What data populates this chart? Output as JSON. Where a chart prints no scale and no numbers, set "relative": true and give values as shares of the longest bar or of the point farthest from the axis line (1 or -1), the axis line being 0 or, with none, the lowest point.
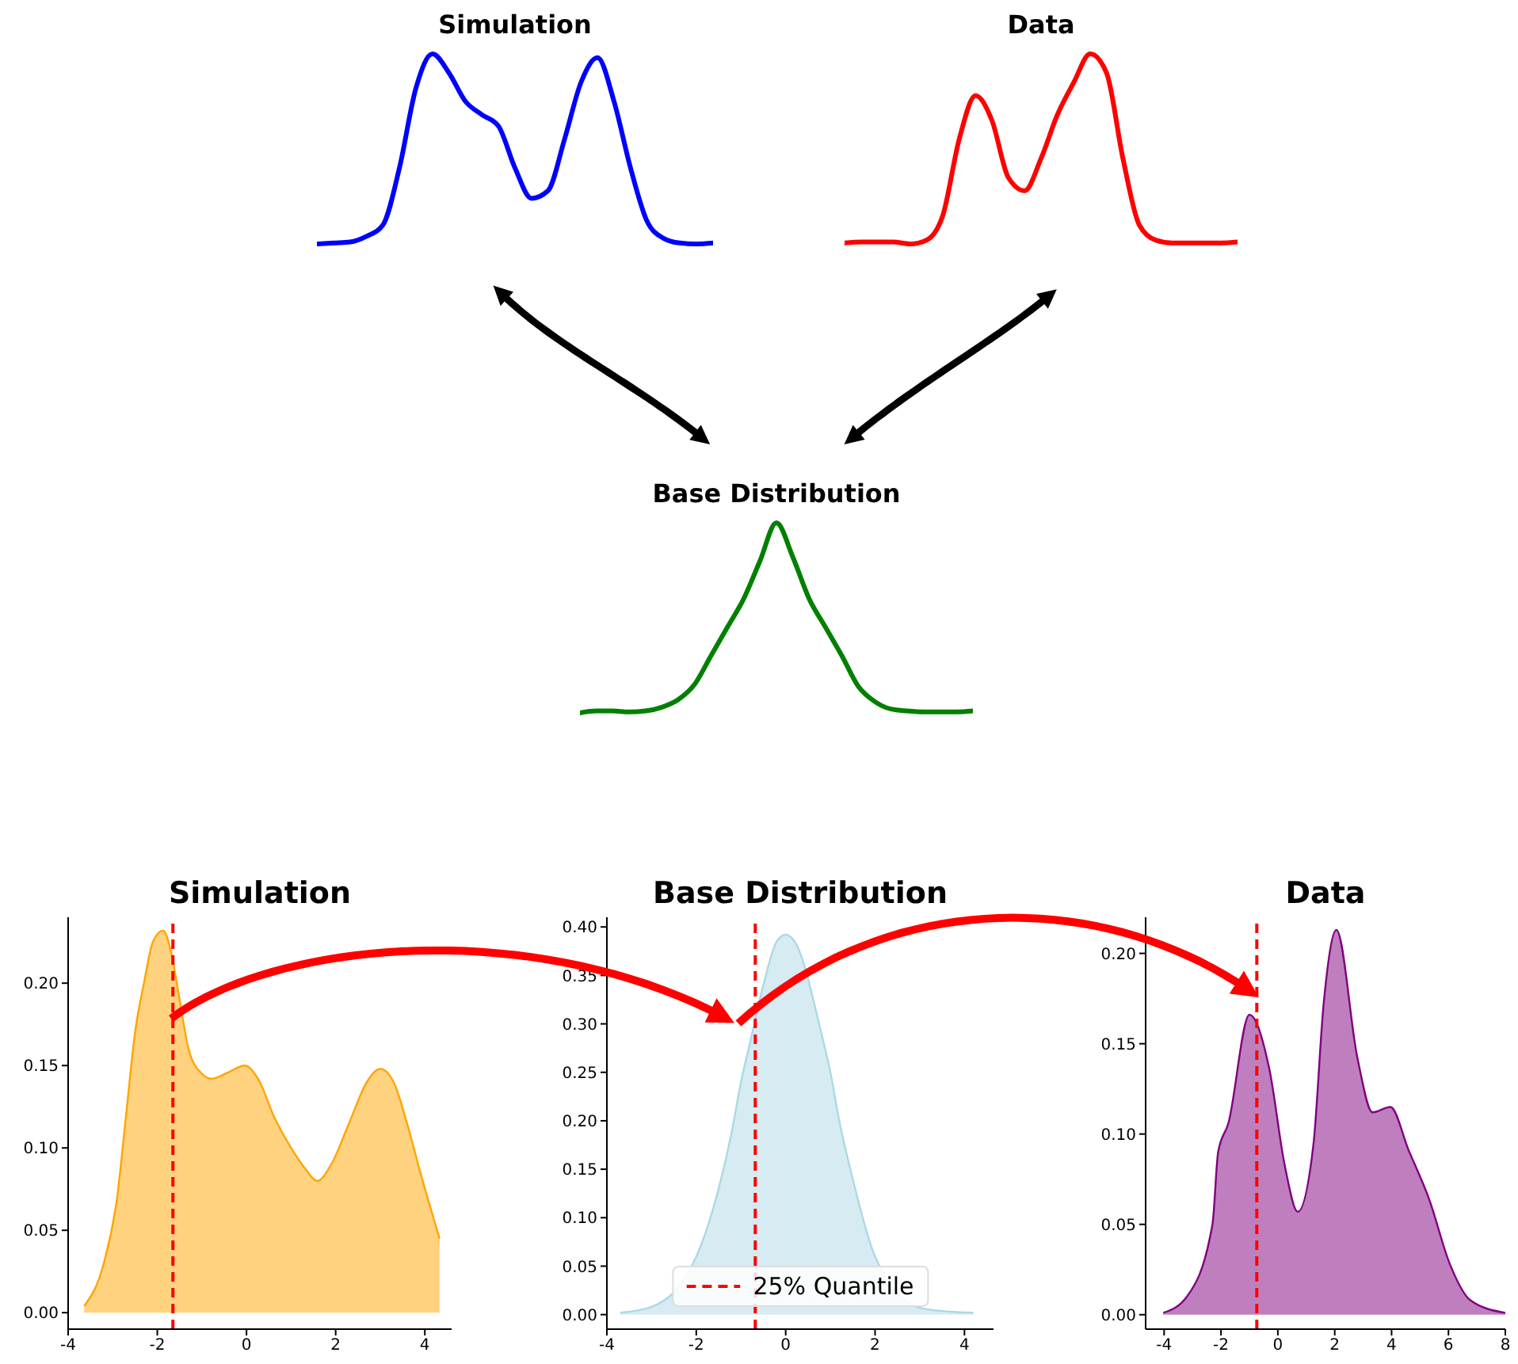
{
  "chart_data": [
    {
      "type": "line",
      "title": "Simulation",
      "relative": true,
      "marker": "none",
      "categories": [
        null,
        null,
        null,
        null,
        null,
        null,
        null,
        null,
        null,
        null,
        null,
        null,
        null,
        null,
        null,
        null,
        null,
        null,
        null,
        null,
        null,
        null,
        null,
        null,
        null
      ],
      "series": [
        {
          "color": "#0000ff",
          "values": [
            0,
            0.005,
            0.01,
            0.04,
            0.1,
            0.4,
            0.82,
            1.0,
            0.9,
            0.75,
            0.68,
            0.62,
            0.4,
            0.24,
            0.28,
            0.55,
            0.85,
            0.98,
            0.75,
            0.4,
            0.12,
            0.03,
            0.005,
            0,
            0.005
          ]
        }
      ]
    },
    {
      "type": "line",
      "title": "Data",
      "relative": true,
      "marker": "none",
      "categories": [
        null,
        null,
        null,
        null,
        null,
        null,
        null,
        null,
        null,
        null,
        null,
        null,
        null,
        null,
        null,
        null,
        null,
        null,
        null,
        null,
        null,
        null,
        null,
        null,
        null
      ],
      "series": [
        {
          "color": "#ff0000",
          "values": [
            0.005,
            0.01,
            0.01,
            0.01,
            0,
            0.02,
            0.15,
            0.55,
            0.78,
            0.65,
            0.35,
            0.28,
            0.45,
            0.68,
            0.85,
            1.0,
            0.9,
            0.45,
            0.1,
            0.02,
            0.005,
            0.005,
            0.005,
            0.005,
            0.01
          ]
        }
      ]
    },
    {
      "type": "line",
      "title": "Base Distribution",
      "relative": true,
      "marker": "none",
      "categories": [
        null,
        null,
        null,
        null,
        null,
        null,
        null,
        null,
        null,
        null,
        null,
        null,
        null,
        null,
        null,
        null,
        null,
        null,
        null,
        null,
        null,
        null,
        null,
        null,
        null
      ],
      "series": [
        {
          "color": "#008000",
          "values": [
            0,
            0.01,
            0.01,
            0.005,
            0.01,
            0.03,
            0.07,
            0.15,
            0.3,
            0.45,
            0.6,
            0.8,
            1.0,
            0.82,
            0.6,
            0.45,
            0.3,
            0.14,
            0.06,
            0.02,
            0.01,
            0.005,
            0.005,
            0.005,
            0.01
          ]
        }
      ]
    },
    {
      "type": "area",
      "title": "Simulation",
      "marker": "none",
      "xlim": [
        -4,
        4.6
      ],
      "xticks": [
        -4,
        -2,
        0,
        2,
        4
      ],
      "ylim": [
        -0.01,
        0.24
      ],
      "yticks": [
        {
          "value": 0,
          "label": "0.00"
        },
        {
          "value": 0.05,
          "label": "0.05"
        },
        {
          "value": 0.1,
          "label": "0.10"
        },
        {
          "value": 0.15,
          "label": "0.15"
        },
        {
          "value": 0.2,
          "label": "0.20"
        }
      ],
      "x": [
        -3.64,
        -3.2,
        -2.9,
        -2.7,
        -2.5,
        -2.3,
        -2.1,
        -1.87,
        -1.7,
        -1.5,
        -1.3,
        -1.0,
        -0.78,
        -0.4,
        -0.04,
        0.3,
        0.6,
        1.0,
        1.3,
        1.59,
        1.9,
        2.3,
        2.7,
        3.0,
        3.3,
        3.6,
        3.9,
        4.33
      ],
      "series": [
        {
          "color": "#ffa500",
          "values": [
            0.004,
            0.03,
            0.07,
            0.12,
            0.17,
            0.2,
            0.225,
            0.232,
            0.22,
            0.19,
            0.16,
            0.145,
            0.142,
            0.146,
            0.15,
            0.14,
            0.12,
            0.1,
            0.088,
            0.08,
            0.09,
            0.115,
            0.14,
            0.148,
            0.14,
            0.115,
            0.085,
            0.045
          ]
        }
      ],
      "ref_lines": [
        {
          "axis": "x",
          "value": -1.65,
          "color": "#ff0000",
          "line_style": "dashed"
        }
      ]
    },
    {
      "type": "area",
      "title": "Base Distribution",
      "marker": "none",
      "legend": "bottom",
      "xlim": [
        -4,
        4.65
      ],
      "xticks": [
        -4,
        -2,
        0,
        2,
        4
      ],
      "ylim": [
        -0.015,
        0.41
      ],
      "yticks": [
        {
          "value": 0,
          "label": "0.00"
        },
        {
          "value": 0.05,
          "label": "0.05"
        },
        {
          "value": 0.1,
          "label": "0.10"
        },
        {
          "value": 0.15,
          "label": "0.15"
        },
        {
          "value": 0.2,
          "label": "0.20"
        },
        {
          "value": 0.25,
          "label": "0.25"
        },
        {
          "value": 0.3,
          "label": "0.30"
        },
        {
          "value": 0.35,
          "label": "0.35"
        },
        {
          "value": 0.4,
          "label": "0.40"
        }
      ],
      "x": [
        -3.7,
        -3,
        -2,
        -1.5,
        -1.2,
        -1,
        -0.8,
        -0.5,
        -0.2,
        0,
        0.2,
        0.8,
        1,
        1.2,
        1.5,
        2,
        3,
        3.7,
        4.2
      ],
      "series": [
        {
          "color": "#add8e6",
          "values": [
            0.002,
            0.008,
            0.06,
            0.13,
            0.19,
            0.24,
            0.28,
            0.34,
            0.385,
            0.392,
            0.385,
            0.29,
            0.25,
            0.2,
            0.14,
            0.06,
            0.007,
            0.003,
            0.002
          ]
        }
      ],
      "ref_lines": [
        {
          "axis": "x",
          "value": -0.68,
          "label": "25% Quantile",
          "color": "#ff0000",
          "line_style": "dashed"
        }
      ]
    },
    {
      "type": "area",
      "title": "Data",
      "marker": "none",
      "xlim": [
        -4.65,
        8
      ],
      "xticks": [
        -4,
        -2,
        0,
        2,
        4,
        6,
        8
      ],
      "ylim": [
        -0.008,
        0.22
      ],
      "yticks": [
        {
          "value": 0,
          "label": "0.00"
        },
        {
          "value": 0.05,
          "label": "0.05"
        },
        {
          "value": 0.1,
          "label": "0.10"
        },
        {
          "value": 0.15,
          "label": "0.15"
        },
        {
          "value": 0.2,
          "label": "0.20"
        }
      ],
      "x": [
        -4.03,
        -3.2,
        -2.3,
        -2.1,
        -1.74,
        -1.0,
        -0.3,
        0.25,
        0.7,
        1.25,
        1.61,
        2.06,
        2.8,
        3.33,
        3.96,
        4.6,
        5.32,
        6.05,
        6.77,
        8
      ],
      "series": [
        {
          "color": "#800080",
          "values": [
            0.001,
            0.01,
            0.05,
            0.09,
            0.106,
            0.166,
            0.136,
            0.082,
            0.057,
            0.094,
            0.172,
            0.213,
            0.142,
            0.112,
            0.115,
            0.091,
            0.064,
            0.028,
            0.008,
            0.001
          ]
        }
      ],
      "ref_lines": [
        {
          "axis": "x",
          "value": -0.74,
          "color": "#ff0000",
          "line_style": "dashed"
        }
      ]
    }
  ]
}
